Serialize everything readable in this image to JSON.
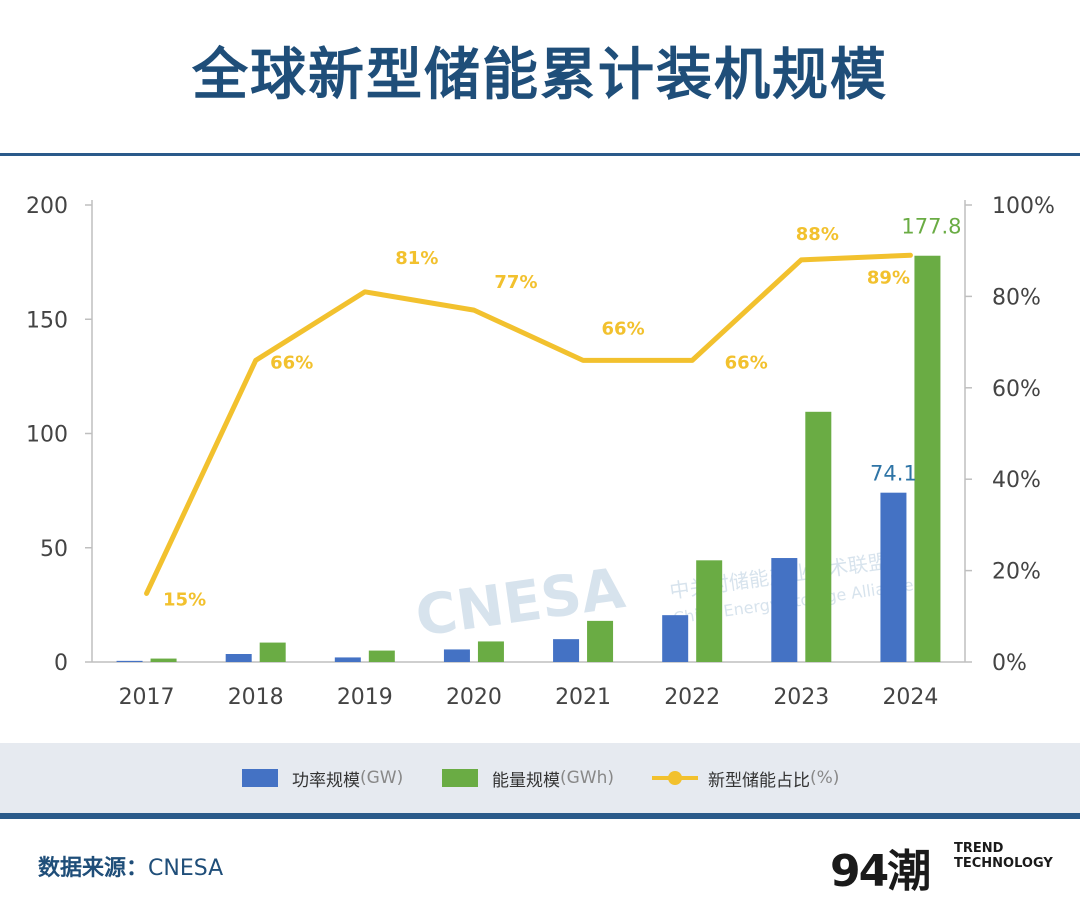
{
  "header": {
    "title": "全球新型储能累计装机规模"
  },
  "chart_data": {
    "type": "bar",
    "categories": [
      "2017",
      "2018",
      "2019",
      "2020",
      "2021",
      "2022",
      "2023",
      "2024"
    ],
    "series": [
      {
        "name": "功率规模(GW)",
        "kind": "bar",
        "axis": "left",
        "color": "#4472c4",
        "values": [
          0.5,
          3.5,
          2.0,
          5.5,
          10.0,
          20.5,
          45.5,
          74.1
        ]
      },
      {
        "name": "能量规模(GWh)",
        "kind": "bar",
        "axis": "left",
        "color": "#6aac44",
        "values": [
          1.5,
          8.5,
          5.0,
          9.0,
          18.0,
          44.5,
          109.5,
          177.8
        ]
      },
      {
        "name": "新型储能占比(%)",
        "kind": "line",
        "axis": "right",
        "color": "#f2c12e",
        "values": [
          15,
          66,
          81,
          77,
          66,
          66,
          88,
          89
        ]
      }
    ],
    "y_left": {
      "ticks": [
        "200",
        "150",
        "100",
        "50",
        "0"
      ],
      "ylim": [
        0,
        200
      ]
    },
    "y_right": {
      "ticks": [
        "100%",
        "80%",
        "60%",
        "40%",
        "20%",
        "0%"
      ],
      "ylim": [
        0,
        100
      ]
    },
    "line_labels": [
      "15%",
      "66%",
      "81%",
      "77%",
      "66%",
      "66%",
      "88%",
      "89%"
    ],
    "bar_labels": {
      "power_2024": "74.1",
      "energy_2024": "177.8"
    },
    "watermark": {
      "logo": "CNESA",
      "cn": "中关村储能产业技术联盟",
      "en": "China Energy Storage Alliance"
    }
  },
  "legend": {
    "power": {
      "name": "功率规模",
      "unit": "(GW)"
    },
    "energy": {
      "name": "能量规模",
      "unit": "(GWh)"
    },
    "share": {
      "name": "新型储能占比",
      "unit": "(%)"
    }
  },
  "footer": {
    "source_label": "数据来源：",
    "source_value": "CNESA",
    "brand_logo": "94潮",
    "brand_line1": "TREND",
    "brand_line2": "TECHNOLOGY"
  },
  "colors": {
    "title": "#1f4e79",
    "power": "#4472c4",
    "energy": "#6aac44",
    "share": "#f2c12e",
    "band": "#e6eaf0"
  }
}
